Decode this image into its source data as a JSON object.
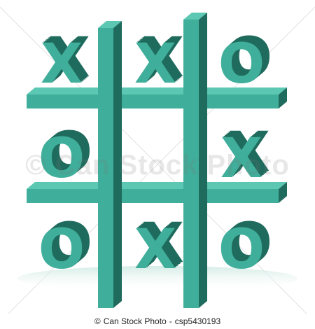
{
  "board": {
    "cells": [
      [
        "X",
        "X",
        "O"
      ],
      [
        "O",
        "",
        "X"
      ],
      [
        "O",
        "X",
        "O"
      ]
    ]
  },
  "colors": {
    "front": "#3fae9a",
    "side": "#1f6b5d",
    "top": "#5cc7b3",
    "shadow": "#d4ece6",
    "background": "#ffffff"
  },
  "watermark": "© Can Stock Photo",
  "credit": {
    "copyright_symbol": "©",
    "brand": "Can Stock Photo",
    "separator": "-",
    "image_code": "csp5430193"
  }
}
